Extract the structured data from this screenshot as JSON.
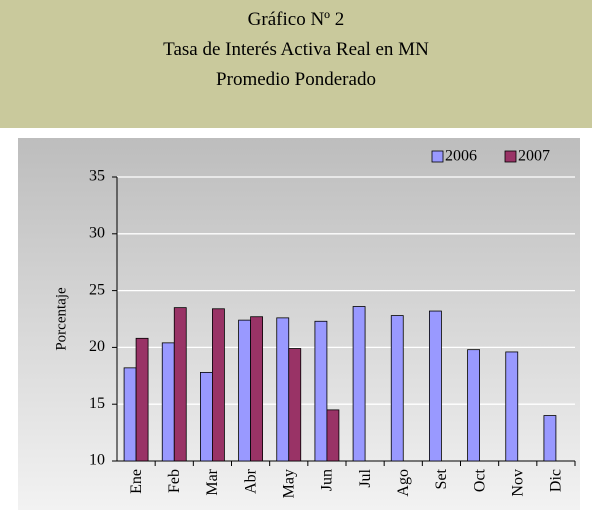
{
  "chart_data": {
    "type": "bar",
    "title": [
      "Gráfico Nº 2",
      "Tasa de Interés Activa Real en MN",
      "Promedio Ponderado"
    ],
    "y_label": "Porcentaje",
    "categories": [
      "Ene",
      "Feb",
      "Mar",
      "Abr",
      "May",
      "Jun",
      "Jul",
      "Ago",
      "Set",
      "Oct",
      "Nov",
      "Dic"
    ],
    "series": [
      {
        "name": "2006",
        "color": "#9999ff",
        "values": [
          18.2,
          20.4,
          17.8,
          22.4,
          22.6,
          22.3,
          23.6,
          22.8,
          23.2,
          19.8,
          19.6,
          14.0
        ]
      },
      {
        "name": "2007",
        "color": "#993366",
        "values": [
          20.8,
          23.5,
          23.4,
          22.7,
          19.9,
          14.5,
          null,
          null,
          null,
          null,
          null,
          null
        ]
      }
    ],
    "ylim": [
      10,
      35
    ],
    "yticks": [
      10,
      15,
      20,
      25,
      30,
      35
    ],
    "grid": true,
    "legend": "top-right"
  }
}
